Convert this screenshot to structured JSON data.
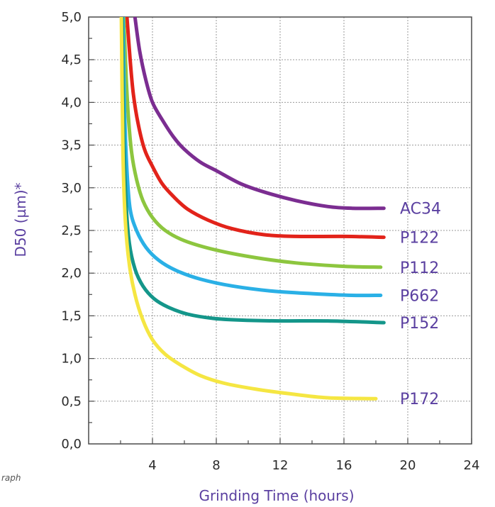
{
  "chart_data": {
    "type": "line",
    "xlabel": "Grinding Time (hours)",
    "ylabel": "D50 (µm)*",
    "xlim": [
      0,
      24
    ],
    "ylim": [
      0,
      5
    ],
    "x_ticks": [
      "4",
      "8",
      "12",
      "16",
      "20",
      "24"
    ],
    "y_ticks": [
      "0,0",
      "0,5",
      "1,0",
      "1,5",
      "2,0",
      "2,5",
      "3,0",
      "3,5",
      "4,0",
      "4,5",
      "5,0"
    ],
    "grid": true,
    "footnote": "raph",
    "series": [
      {
        "name": "AC34",
        "color": "#7b2d91",
        "x": [
          2.9,
          3.2,
          3.6,
          4.0,
          4.6,
          5.3,
          6.0,
          7.0,
          8.0,
          9.5,
          11.0,
          13.0,
          15.0,
          16.5,
          18.5
        ],
        "y": [
          5.0,
          4.6,
          4.25,
          4.0,
          3.8,
          3.6,
          3.45,
          3.3,
          3.2,
          3.05,
          2.95,
          2.85,
          2.78,
          2.76,
          2.76
        ]
      },
      {
        "name": "P122",
        "color": "#e2231a",
        "x": [
          2.4,
          2.6,
          2.8,
          3.1,
          3.5,
          4.0,
          4.6,
          5.3,
          6.2,
          7.5,
          9.0,
          11.0,
          13.0,
          16.0,
          18.5
        ],
        "y": [
          5.0,
          4.5,
          4.1,
          3.75,
          3.45,
          3.25,
          3.05,
          2.9,
          2.75,
          2.62,
          2.52,
          2.45,
          2.43,
          2.43,
          2.42
        ]
      },
      {
        "name": "P112",
        "color": "#8dc63f",
        "x": [
          2.2,
          2.35,
          2.5,
          2.7,
          3.0,
          3.4,
          4.0,
          4.8,
          6.0,
          8.0,
          10.5,
          13.0,
          16.0,
          18.3
        ],
        "y": [
          5.0,
          4.3,
          3.8,
          3.4,
          3.1,
          2.85,
          2.65,
          2.5,
          2.38,
          2.27,
          2.18,
          2.12,
          2.08,
          2.07
        ]
      },
      {
        "name": "P662",
        "color": "#2ab0e6",
        "x": [
          2.15,
          2.25,
          2.4,
          2.6,
          3.0,
          3.6,
          4.4,
          5.5,
          7.0,
          9.0,
          11.5,
          14.0,
          16.5,
          18.3
        ],
        "y": [
          5.0,
          3.9,
          3.2,
          2.75,
          2.5,
          2.3,
          2.15,
          2.03,
          1.93,
          1.85,
          1.79,
          1.76,
          1.74,
          1.74
        ]
      },
      {
        "name": "P152",
        "color": "#14968a",
        "x": [
          2.1,
          2.2,
          2.35,
          2.55,
          2.9,
          3.4,
          4.1,
          5.0,
          6.2,
          7.8,
          9.5,
          12.0,
          15.0,
          18.5
        ],
        "y": [
          5.0,
          3.6,
          2.8,
          2.35,
          2.05,
          1.85,
          1.7,
          1.6,
          1.52,
          1.47,
          1.45,
          1.44,
          1.44,
          1.42
        ]
      },
      {
        "name": "P172",
        "color": "#f5e642",
        "x": [
          2.05,
          2.15,
          2.3,
          2.55,
          2.9,
          3.4,
          4.0,
          4.8,
          5.8,
          7.0,
          8.5,
          10.5,
          12.5,
          15.0,
          18.0
        ],
        "y": [
          5.0,
          3.4,
          2.6,
          2.1,
          1.75,
          1.45,
          1.22,
          1.05,
          0.92,
          0.8,
          0.71,
          0.64,
          0.59,
          0.54,
          0.53
        ]
      }
    ]
  }
}
